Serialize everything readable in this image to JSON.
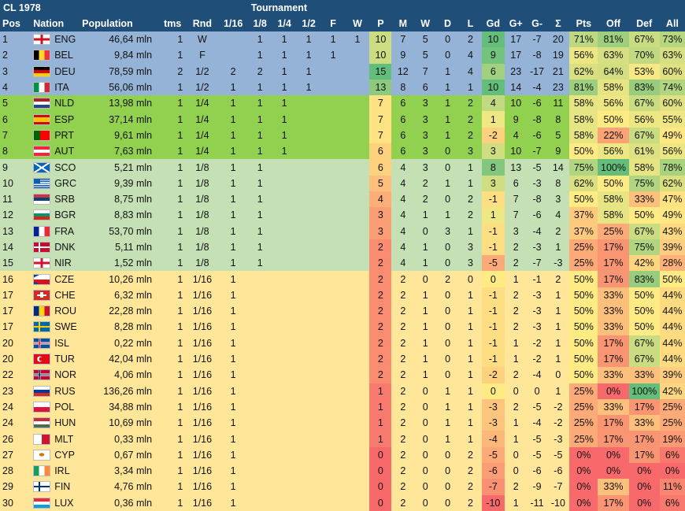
{
  "title": "CL 1978",
  "tournament_label": "Tournament",
  "columns": [
    "Pos",
    "Nation",
    "Population",
    "tms",
    "Rnd",
    "1/16",
    "1/8",
    "1/4",
    "1/2",
    "F",
    "W",
    "P",
    "M",
    "W",
    "D",
    "L",
    "Gd",
    "G+",
    "G-",
    "Σ",
    "Pts",
    "Off",
    "Def",
    "All"
  ],
  "colors": {
    "header": "#1f4e79",
    "tier_blue": "#95b3d7",
    "tier_green": "#92d050",
    "tier_lightgreen": "#c4e0b4",
    "tier_yellow": "#ffe699",
    "good": "#63be7b",
    "mid": "#ffeb84",
    "bad": "#f8696b"
  },
  "rows": [
    {
      "pos": "1",
      "nation": "ENG",
      "flag": "eng",
      "pop": "46,64 mln",
      "tms": "1",
      "rnd": "W",
      "t": [
        "",
        "1",
        "1",
        "1",
        "1",
        "1"
      ],
      "p": "10",
      "m": "7",
      "w": "5",
      "d": "0",
      "l": "2",
      "gd": "10",
      "gp": "17",
      "gm": "-7",
      "s": "20",
      "pts": "71%",
      "off": "81%",
      "def": "67%",
      "all": "73%",
      "tier": "blue"
    },
    {
      "pos": "2",
      "nation": "BEL",
      "flag": "bel",
      "pop": "9,84 mln",
      "tms": "1",
      "rnd": "F",
      "t": [
        "",
        "1",
        "1",
        "1",
        "1",
        ""
      ],
      "p": "10",
      "m": "9",
      "w": "5",
      "d": "0",
      "l": "4",
      "gd": "9",
      "gp": "17",
      "gm": "-8",
      "s": "19",
      "pts": "56%",
      "off": "63%",
      "def": "70%",
      "all": "63%",
      "tier": "blue"
    },
    {
      "pos": "3",
      "nation": "DEU",
      "flag": "deu",
      "pop": "78,59 mln",
      "tms": "2",
      "rnd": "1/2",
      "t": [
        "2",
        "2",
        "1",
        "1",
        "",
        ""
      ],
      "p": "15",
      "m": "12",
      "w": "7",
      "d": "1",
      "l": "4",
      "gd": "6",
      "gp": "23",
      "gm": "-17",
      "s": "21",
      "pts": "62%",
      "off": "64%",
      "def": "53%",
      "all": "60%",
      "tier": "blue"
    },
    {
      "pos": "4",
      "nation": "ITA",
      "flag": "ita",
      "pop": "56,06 mln",
      "tms": "1",
      "rnd": "1/2",
      "t": [
        "1",
        "1",
        "1",
        "1",
        "",
        ""
      ],
      "p": "13",
      "m": "8",
      "w": "6",
      "d": "1",
      "l": "1",
      "gd": "10",
      "gp": "14",
      "gm": "-4",
      "s": "23",
      "pts": "81%",
      "off": "58%",
      "def": "83%",
      "all": "74%",
      "tier": "blue"
    },
    {
      "pos": "5",
      "nation": "NLD",
      "flag": "nld",
      "pop": "13,98 mln",
      "tms": "1",
      "rnd": "1/4",
      "t": [
        "1",
        "1",
        "1",
        "",
        "",
        ""
      ],
      "p": "7",
      "m": "6",
      "w": "3",
      "d": "1",
      "l": "2",
      "gd": "4",
      "gp": "10",
      "gm": "-6",
      "s": "11",
      "pts": "58%",
      "off": "56%",
      "def": "67%",
      "all": "60%",
      "tier": "green"
    },
    {
      "pos": "6",
      "nation": "ESP",
      "flag": "esp",
      "pop": "37,14 mln",
      "tms": "1",
      "rnd": "1/4",
      "t": [
        "1",
        "1",
        "1",
        "",
        "",
        ""
      ],
      "p": "7",
      "m": "6",
      "w": "3",
      "d": "1",
      "l": "2",
      "gd": "1",
      "gp": "9",
      "gm": "-8",
      "s": "8",
      "pts": "58%",
      "off": "50%",
      "def": "56%",
      "all": "55%",
      "tier": "green"
    },
    {
      "pos": "7",
      "nation": "PRT",
      "flag": "prt",
      "pop": "9,61 mln",
      "tms": "1",
      "rnd": "1/4",
      "t": [
        "1",
        "1",
        "1",
        "",
        "",
        ""
      ],
      "p": "7",
      "m": "6",
      "w": "3",
      "d": "1",
      "l": "2",
      "gd": "-2",
      "gp": "4",
      "gm": "-6",
      "s": "5",
      "pts": "58%",
      "off": "22%",
      "def": "67%",
      "all": "49%",
      "tier": "green"
    },
    {
      "pos": "8",
      "nation": "AUT",
      "flag": "aut",
      "pop": "7,63 mln",
      "tms": "1",
      "rnd": "1/4",
      "t": [
        "1",
        "1",
        "1",
        "",
        "",
        ""
      ],
      "p": "6",
      "m": "6",
      "w": "3",
      "d": "0",
      "l": "3",
      "gd": "3",
      "gp": "10",
      "gm": "-7",
      "s": "9",
      "pts": "50%",
      "off": "56%",
      "def": "61%",
      "all": "56%",
      "tier": "green"
    },
    {
      "pos": "9",
      "nation": "SCO",
      "flag": "sco",
      "pop": "5,21 mln",
      "tms": "1",
      "rnd": "1/8",
      "t": [
        "1",
        "1",
        "",
        "",
        "",
        ""
      ],
      "p": "6",
      "m": "4",
      "w": "3",
      "d": "0",
      "l": "1",
      "gd": "8",
      "gp": "13",
      "gm": "-5",
      "s": "14",
      "pts": "75%",
      "off": "100%",
      "def": "58%",
      "all": "78%",
      "tier": "lightgreen"
    },
    {
      "pos": "10",
      "nation": "GRC",
      "flag": "grc",
      "pop": "9,39 mln",
      "tms": "1",
      "rnd": "1/8",
      "t": [
        "1",
        "1",
        "",
        "",
        "",
        ""
      ],
      "p": "5",
      "m": "4",
      "w": "2",
      "d": "1",
      "l": "1",
      "gd": "3",
      "gp": "6",
      "gm": "-3",
      "s": "8",
      "pts": "62%",
      "off": "50%",
      "def": "75%",
      "all": "62%",
      "tier": "lightgreen"
    },
    {
      "pos": "11",
      "nation": "SRB",
      "flag": "srb",
      "pop": "8,75 mln",
      "tms": "1",
      "rnd": "1/8",
      "t": [
        "1",
        "1",
        "",
        "",
        "",
        ""
      ],
      "p": "4",
      "m": "4",
      "w": "2",
      "d": "0",
      "l": "2",
      "gd": "-1",
      "gp": "7",
      "gm": "-8",
      "s": "3",
      "pts": "50%",
      "off": "58%",
      "def": "33%",
      "all": "47%",
      "tier": "lightgreen"
    },
    {
      "pos": "12",
      "nation": "BGR",
      "flag": "bgr",
      "pop": "8,83 mln",
      "tms": "1",
      "rnd": "1/8",
      "t": [
        "1",
        "1",
        "",
        "",
        "",
        ""
      ],
      "p": "3",
      "m": "4",
      "w": "1",
      "d": "1",
      "l": "2",
      "gd": "1",
      "gp": "7",
      "gm": "-6",
      "s": "4",
      "pts": "37%",
      "off": "58%",
      "def": "50%",
      "all": "49%",
      "tier": "lightgreen"
    },
    {
      "pos": "13",
      "nation": "FRA",
      "flag": "fra",
      "pop": "53,70 mln",
      "tms": "1",
      "rnd": "1/8",
      "t": [
        "1",
        "1",
        "",
        "",
        "",
        ""
      ],
      "p": "3",
      "m": "4",
      "w": "0",
      "d": "3",
      "l": "1",
      "gd": "-1",
      "gp": "3",
      "gm": "-4",
      "s": "2",
      "pts": "37%",
      "off": "25%",
      "def": "67%",
      "all": "43%",
      "tier": "lightgreen"
    },
    {
      "pos": "14",
      "nation": "DNK",
      "flag": "dnk",
      "pop": "5,11 mln",
      "tms": "1",
      "rnd": "1/8",
      "t": [
        "1",
        "1",
        "",
        "",
        "",
        ""
      ],
      "p": "2",
      "m": "4",
      "w": "1",
      "d": "0",
      "l": "3",
      "gd": "-1",
      "gp": "2",
      "gm": "-3",
      "s": "1",
      "pts": "25%",
      "off": "17%",
      "def": "75%",
      "all": "39%",
      "tier": "lightgreen"
    },
    {
      "pos": "15",
      "nation": "NIR",
      "flag": "nir",
      "pop": "1,52 mln",
      "tms": "1",
      "rnd": "1/8",
      "t": [
        "1",
        "1",
        "",
        "",
        "",
        ""
      ],
      "p": "2",
      "m": "4",
      "w": "1",
      "d": "0",
      "l": "3",
      "gd": "-5",
      "gp": "2",
      "gm": "-7",
      "s": "-3",
      "pts": "25%",
      "off": "17%",
      "def": "42%",
      "all": "28%",
      "tier": "lightgreen"
    },
    {
      "pos": "16",
      "nation": "CZE",
      "flag": "cze",
      "pop": "10,26 mln",
      "tms": "1",
      "rnd": "1/16",
      "t": [
        "1",
        "",
        "",
        "",
        "",
        ""
      ],
      "p": "2",
      "m": "2",
      "w": "0",
      "d": "2",
      "l": "0",
      "gd": "0",
      "gp": "1",
      "gm": "-1",
      "s": "2",
      "pts": "50%",
      "off": "17%",
      "def": "83%",
      "all": "50%",
      "tier": "yellow"
    },
    {
      "pos": "17",
      "nation": "CHE",
      "flag": "che",
      "pop": "6,32 mln",
      "tms": "1",
      "rnd": "1/16",
      "t": [
        "1",
        "",
        "",
        "",
        "",
        ""
      ],
      "p": "2",
      "m": "2",
      "w": "1",
      "d": "0",
      "l": "1",
      "gd": "-1",
      "gp": "2",
      "gm": "-3",
      "s": "1",
      "pts": "50%",
      "off": "33%",
      "def": "50%",
      "all": "44%",
      "tier": "yellow"
    },
    {
      "pos": "17",
      "nation": "ROU",
      "flag": "rou",
      "pop": "22,28 mln",
      "tms": "1",
      "rnd": "1/16",
      "t": [
        "1",
        "",
        "",
        "",
        "",
        ""
      ],
      "p": "2",
      "m": "2",
      "w": "1",
      "d": "0",
      "l": "1",
      "gd": "-1",
      "gp": "2",
      "gm": "-3",
      "s": "1",
      "pts": "50%",
      "off": "33%",
      "def": "50%",
      "all": "44%",
      "tier": "yellow"
    },
    {
      "pos": "17",
      "nation": "SWE",
      "flag": "swe",
      "pop": "8,28 mln",
      "tms": "1",
      "rnd": "1/16",
      "t": [
        "1",
        "",
        "",
        "",
        "",
        ""
      ],
      "p": "2",
      "m": "2",
      "w": "1",
      "d": "0",
      "l": "1",
      "gd": "-1",
      "gp": "2",
      "gm": "-3",
      "s": "1",
      "pts": "50%",
      "off": "33%",
      "def": "50%",
      "all": "44%",
      "tier": "yellow"
    },
    {
      "pos": "20",
      "nation": "ISL",
      "flag": "isl",
      "pop": "0,22 mln",
      "tms": "1",
      "rnd": "1/16",
      "t": [
        "1",
        "",
        "",
        "",
        "",
        ""
      ],
      "p": "2",
      "m": "2",
      "w": "1",
      "d": "0",
      "l": "1",
      "gd": "-1",
      "gp": "1",
      "gm": "-2",
      "s": "1",
      "pts": "50%",
      "off": "17%",
      "def": "67%",
      "all": "44%",
      "tier": "yellow"
    },
    {
      "pos": "20",
      "nation": "TUR",
      "flag": "tur",
      "pop": "42,04 mln",
      "tms": "1",
      "rnd": "1/16",
      "t": [
        "1",
        "",
        "",
        "",
        "",
        ""
      ],
      "p": "2",
      "m": "2",
      "w": "1",
      "d": "0",
      "l": "1",
      "gd": "-1",
      "gp": "1",
      "gm": "-2",
      "s": "1",
      "pts": "50%",
      "off": "17%",
      "def": "67%",
      "all": "44%",
      "tier": "yellow"
    },
    {
      "pos": "22",
      "nation": "NOR",
      "flag": "nor",
      "pop": "4,06 mln",
      "tms": "1",
      "rnd": "1/16",
      "t": [
        "1",
        "",
        "",
        "",
        "",
        ""
      ],
      "p": "2",
      "m": "2",
      "w": "1",
      "d": "0",
      "l": "1",
      "gd": "-2",
      "gp": "2",
      "gm": "-4",
      "s": "0",
      "pts": "50%",
      "off": "33%",
      "def": "33%",
      "all": "39%",
      "tier": "yellow"
    },
    {
      "pos": "23",
      "nation": "RUS",
      "flag": "rus",
      "pop": "136,26 mln",
      "tms": "1",
      "rnd": "1/16",
      "t": [
        "1",
        "",
        "",
        "",
        "",
        ""
      ],
      "p": "1",
      "m": "2",
      "w": "0",
      "d": "1",
      "l": "1",
      "gd": "0",
      "gp": "0",
      "gm": "0",
      "s": "1",
      "pts": "25%",
      "off": "0%",
      "def": "100%",
      "all": "42%",
      "tier": "yellow"
    },
    {
      "pos": "24",
      "nation": "POL",
      "flag": "pol",
      "pop": "34,88 mln",
      "tms": "1",
      "rnd": "1/16",
      "t": [
        "1",
        "",
        "",
        "",
        "",
        ""
      ],
      "p": "1",
      "m": "2",
      "w": "0",
      "d": "1",
      "l": "1",
      "gd": "-3",
      "gp": "2",
      "gm": "-5",
      "s": "-2",
      "pts": "25%",
      "off": "33%",
      "def": "17%",
      "all": "25%",
      "tier": "yellow"
    },
    {
      "pos": "24",
      "nation": "HUN",
      "flag": "hun",
      "pop": "10,69 mln",
      "tms": "1",
      "rnd": "1/16",
      "t": [
        "1",
        "",
        "",
        "",
        "",
        ""
      ],
      "p": "1",
      "m": "2",
      "w": "0",
      "d": "1",
      "l": "1",
      "gd": "-3",
      "gp": "1",
      "gm": "-4",
      "s": "-2",
      "pts": "25%",
      "off": "17%",
      "def": "33%",
      "all": "25%",
      "tier": "yellow"
    },
    {
      "pos": "26",
      "nation": "MLT",
      "flag": "mlt",
      "pop": "0,33 mln",
      "tms": "1",
      "rnd": "1/16",
      "t": [
        "1",
        "",
        "",
        "",
        "",
        ""
      ],
      "p": "1",
      "m": "2",
      "w": "0",
      "d": "1",
      "l": "1",
      "gd": "-4",
      "gp": "1",
      "gm": "-5",
      "s": "-3",
      "pts": "25%",
      "off": "17%",
      "def": "17%",
      "all": "19%",
      "tier": "yellow"
    },
    {
      "pos": "27",
      "nation": "CYP",
      "flag": "cyp",
      "pop": "0,67 mln",
      "tms": "1",
      "rnd": "1/16",
      "t": [
        "1",
        "",
        "",
        "",
        "",
        ""
      ],
      "p": "0",
      "m": "2",
      "w": "0",
      "d": "0",
      "l": "2",
      "gd": "-5",
      "gp": "0",
      "gm": "-5",
      "s": "-5",
      "pts": "0%",
      "off": "0%",
      "def": "17%",
      "all": "6%",
      "tier": "yellow"
    },
    {
      "pos": "28",
      "nation": "IRL",
      "flag": "irl",
      "pop": "3,34 mln",
      "tms": "1",
      "rnd": "1/16",
      "t": [
        "1",
        "",
        "",
        "",
        "",
        ""
      ],
      "p": "0",
      "m": "2",
      "w": "0",
      "d": "0",
      "l": "2",
      "gd": "-6",
      "gp": "0",
      "gm": "-6",
      "s": "-6",
      "pts": "0%",
      "off": "0%",
      "def": "0%",
      "all": "0%",
      "tier": "yellow"
    },
    {
      "pos": "29",
      "nation": "FIN",
      "flag": "fin",
      "pop": "4,76 mln",
      "tms": "1",
      "rnd": "1/16",
      "t": [
        "1",
        "",
        "",
        "",
        "",
        ""
      ],
      "p": "0",
      "m": "2",
      "w": "0",
      "d": "0",
      "l": "2",
      "gd": "-7",
      "gp": "2",
      "gm": "-9",
      "s": "-7",
      "pts": "0%",
      "off": "33%",
      "def": "0%",
      "all": "11%",
      "tier": "yellow"
    },
    {
      "pos": "30",
      "nation": "LUX",
      "flag": "lux",
      "pop": "0,36 mln",
      "tms": "1",
      "rnd": "1/16",
      "t": [
        "1",
        "",
        "",
        "",
        "",
        ""
      ],
      "p": "0",
      "m": "2",
      "w": "0",
      "d": "0",
      "l": "2",
      "gd": "-10",
      "gp": "1",
      "gm": "-11",
      "s": "-10",
      "pts": "0%",
      "off": "17%",
      "def": "0%",
      "all": "6%",
      "tier": "yellow"
    }
  ]
}
